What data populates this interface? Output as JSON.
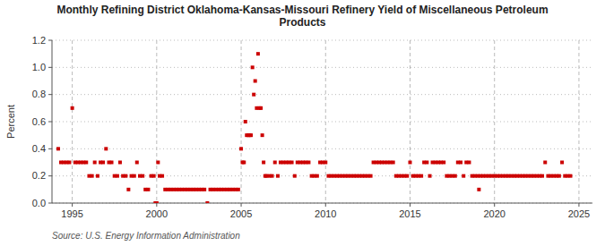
{
  "chart_data": {
    "type": "scatter",
    "title": "Monthly Refining District Oklahoma-Kansas-Missouri Refinery Yield of Miscellaneous Petroleum\nProducts",
    "ylabel": "Percent",
    "annotations": [
      "Source: U.S. Energy Information Administration"
    ],
    "color": "#cc0000",
    "marker": "square",
    "grid": true,
    "xlim": [
      1993.8,
      2025.8
    ],
    "xticks": [
      1995,
      2000,
      2005,
      2010,
      2015,
      2020,
      2025
    ],
    "ylim": [
      0.0,
      1.2
    ],
    "yticks": [
      {
        "value": 0.0,
        "label": "0.0"
      },
      0.2,
      0.4,
      0.6,
      0.8,
      {
        "value": 1.0,
        "label": "1.0"
      },
      1.2
    ],
    "x": [
      1994.17,
      1994.33,
      1994.5,
      1994.67,
      1994.83,
      1995.0,
      1995.17,
      1995.33,
      1995.5,
      1995.67,
      1995.83,
      1996.0,
      1996.17,
      1996.33,
      1996.5,
      1996.67,
      1996.83,
      1997.0,
      1997.17,
      1997.33,
      1997.5,
      1997.67,
      1997.83,
      1998.0,
      1998.17,
      1998.33,
      1998.5,
      1998.67,
      1998.83,
      1999.0,
      1999.17,
      1999.33,
      1999.5,
      1999.67,
      1999.83,
      1999.92,
      2000.0,
      2000.08,
      2000.17,
      2000.33,
      2000.5,
      2000.67,
      2000.83,
      2001.0,
      2001.17,
      2001.33,
      2001.5,
      2001.67,
      2001.83,
      2002.0,
      2002.17,
      2002.33,
      2002.5,
      2002.67,
      2002.83,
      2003.0,
      2003.17,
      2003.33,
      2003.5,
      2003.67,
      2003.83,
      2004.0,
      2004.17,
      2004.33,
      2004.5,
      2004.67,
      2004.83,
      2005.0,
      2005.08,
      2005.17,
      2005.25,
      2005.33,
      2005.42,
      2005.5,
      2005.58,
      2005.67,
      2005.75,
      2005.83,
      2005.92,
      2006.0,
      2006.08,
      2006.17,
      2006.25,
      2006.33,
      2006.42,
      2006.5,
      2006.67,
      2006.83,
      2007.0,
      2007.17,
      2007.33,
      2007.5,
      2007.67,
      2007.83,
      2008.0,
      2008.17,
      2008.33,
      2008.5,
      2008.67,
      2008.83,
      2009.0,
      2009.17,
      2009.33,
      2009.5,
      2009.67,
      2009.83,
      2010.0,
      2010.17,
      2010.33,
      2010.5,
      2010.67,
      2010.83,
      2011.0,
      2011.17,
      2011.33,
      2011.5,
      2011.67,
      2011.83,
      2012.0,
      2012.17,
      2012.33,
      2012.5,
      2012.67,
      2012.83,
      2013.0,
      2013.17,
      2013.33,
      2013.5,
      2013.67,
      2013.83,
      2014.0,
      2014.17,
      2014.33,
      2014.5,
      2014.67,
      2014.83,
      2015.0,
      2015.17,
      2015.33,
      2015.5,
      2015.67,
      2015.83,
      2016.0,
      2016.17,
      2016.33,
      2016.5,
      2016.67,
      2016.83,
      2017.0,
      2017.17,
      2017.33,
      2017.5,
      2017.67,
      2017.83,
      2018.0,
      2018.17,
      2018.33,
      2018.5,
      2018.67,
      2018.83,
      2019.0,
      2019.08,
      2019.17,
      2019.33,
      2019.5,
      2019.67,
      2019.83,
      2020.0,
      2020.17,
      2020.33,
      2020.5,
      2020.67,
      2020.83,
      2021.0,
      2021.17,
      2021.33,
      2021.5,
      2021.67,
      2021.83,
      2022.0,
      2022.17,
      2022.33,
      2022.5,
      2022.67,
      2022.83,
      2023.0,
      2023.17,
      2023.33,
      2023.5,
      2023.67,
      2023.83,
      2024.0,
      2024.17,
      2024.33,
      2024.5
    ],
    "values": [
      0.4,
      0.3,
      0.3,
      0.3,
      0.3,
      0.7,
      0.3,
      0.3,
      0.3,
      0.3,
      0.3,
      0.2,
      0.2,
      0.3,
      0.2,
      0.3,
      0.3,
      0.4,
      0.3,
      0.3,
      0.2,
      0.2,
      0.3,
      0.2,
      0.2,
      0.1,
      0.2,
      0.2,
      0.3,
      0.2,
      0.2,
      0.1,
      0.1,
      0.2,
      0.2,
      0.0,
      0.0,
      0.3,
      0.2,
      0.2,
      0.1,
      0.1,
      0.1,
      0.1,
      0.1,
      0.1,
      0.1,
      0.1,
      0.1,
      0.1,
      0.1,
      0.1,
      0.1,
      0.1,
      0.1,
      0.0,
      0.1,
      0.1,
      0.1,
      0.1,
      0.1,
      0.1,
      0.1,
      0.1,
      0.1,
      0.1,
      0.1,
      0.4,
      0.3,
      0.3,
      0.6,
      0.5,
      0.5,
      0.5,
      0.5,
      1.0,
      0.8,
      0.9,
      0.7,
      1.1,
      0.7,
      0.7,
      0.5,
      0.3,
      0.2,
      0.2,
      0.2,
      0.2,
      0.3,
      0.2,
      0.3,
      0.3,
      0.3,
      0.3,
      0.3,
      0.2,
      0.3,
      0.3,
      0.3,
      0.3,
      0.3,
      0.2,
      0.2,
      0.2,
      0.3,
      0.3,
      0.3,
      0.2,
      0.2,
      0.2,
      0.2,
      0.2,
      0.2,
      0.2,
      0.2,
      0.2,
      0.2,
      0.2,
      0.2,
      0.2,
      0.2,
      0.2,
      0.2,
      0.3,
      0.3,
      0.3,
      0.3,
      0.3,
      0.3,
      0.3,
      0.3,
      0.2,
      0.2,
      0.2,
      0.2,
      0.2,
      0.3,
      0.2,
      0.2,
      0.2,
      0.2,
      0.3,
      0.3,
      0.2,
      0.3,
      0.3,
      0.3,
      0.3,
      0.3,
      0.2,
      0.2,
      0.2,
      0.2,
      0.3,
      0.3,
      0.2,
      0.3,
      0.3,
      0.2,
      0.2,
      0.2,
      0.1,
      0.2,
      0.2,
      0.2,
      0.2,
      0.2,
      0.2,
      0.2,
      0.2,
      0.2,
      0.2,
      0.2,
      0.2,
      0.2,
      0.2,
      0.2,
      0.2,
      0.2,
      0.2,
      0.2,
      0.2,
      0.2,
      0.2,
      0.2,
      0.3,
      0.2,
      0.2,
      0.2,
      0.2,
      0.2,
      0.3,
      0.2,
      0.2,
      0.2
    ]
  }
}
